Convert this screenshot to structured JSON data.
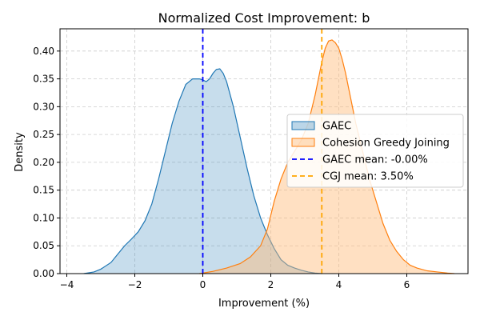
{
  "chart_data": {
    "type": "area",
    "title": "Normalized Cost Improvement: b",
    "xlabel": "Improvement (%)",
    "ylabel": "Density",
    "xlim": [
      -4.2,
      7.8
    ],
    "ylim": [
      0,
      0.44
    ],
    "xticks": [
      -4,
      -2,
      0,
      2,
      4,
      6
    ],
    "xtick_labels": [
      "−4",
      "−2",
      "0",
      "2",
      "4",
      "6"
    ],
    "yticks": [
      0,
      0.05,
      0.1,
      0.15,
      0.2,
      0.25,
      0.3,
      0.35,
      0.4
    ],
    "ytick_labels": [
      "0.00",
      "0.05",
      "0.10",
      "0.15",
      "0.20",
      "0.25",
      "0.30",
      "0.35",
      "0.40"
    ],
    "grid": true,
    "legend_position": "center-right",
    "series": [
      {
        "name": "GAEC",
        "kind": "density",
        "color": "#1f77b4",
        "fill": "#1f77b4",
        "x": [
          -3.5,
          -3.2,
          -3.0,
          -2.7,
          -2.5,
          -2.3,
          -2.1,
          -1.9,
          -1.7,
          -1.5,
          -1.3,
          -1.1,
          -0.9,
          -0.7,
          -0.5,
          -0.3,
          -0.1,
          0.0,
          0.1,
          0.2,
          0.3,
          0.4,
          0.5,
          0.6,
          0.7,
          0.9,
          1.1,
          1.3,
          1.5,
          1.7,
          1.9,
          2.1,
          2.3,
          2.5,
          2.7,
          2.9,
          3.1,
          3.3,
          3.5
        ],
        "y": [
          0.0,
          0.003,
          0.008,
          0.02,
          0.035,
          0.05,
          0.062,
          0.075,
          0.095,
          0.125,
          0.17,
          0.22,
          0.27,
          0.31,
          0.34,
          0.35,
          0.35,
          0.348,
          0.345,
          0.35,
          0.36,
          0.367,
          0.368,
          0.36,
          0.345,
          0.3,
          0.245,
          0.19,
          0.14,
          0.1,
          0.07,
          0.045,
          0.025,
          0.015,
          0.01,
          0.006,
          0.003,
          0.001,
          0.0
        ]
      },
      {
        "name": "Cohesion Greedy Joining",
        "kind": "density",
        "color": "#ff7f0e",
        "fill": "#ffbb78",
        "x": [
          -0.1,
          0.3,
          0.7,
          1.1,
          1.4,
          1.7,
          1.9,
          2.1,
          2.3,
          2.5,
          2.7,
          2.9,
          3.1,
          3.3,
          3.5,
          3.6,
          3.7,
          3.8,
          3.9,
          4.0,
          4.1,
          4.2,
          4.3,
          4.5,
          4.7,
          4.9,
          5.1,
          5.3,
          5.5,
          5.7,
          5.9,
          6.1,
          6.3,
          6.6,
          6.9,
          7.2,
          7.4
        ],
        "y": [
          0.0,
          0.004,
          0.01,
          0.018,
          0.03,
          0.05,
          0.08,
          0.13,
          0.17,
          0.2,
          0.22,
          0.24,
          0.27,
          0.32,
          0.38,
          0.405,
          0.418,
          0.42,
          0.415,
          0.405,
          0.385,
          0.36,
          0.33,
          0.27,
          0.22,
          0.17,
          0.13,
          0.09,
          0.06,
          0.04,
          0.025,
          0.015,
          0.01,
          0.005,
          0.003,
          0.001,
          0.0
        ]
      }
    ],
    "vlines": [
      {
        "name": "GAEC mean: -0.00%",
        "x": 0.0,
        "color": "#0000ff",
        "style": "dashed"
      },
      {
        "name": "CGJ mean: 3.50%",
        "x": 3.5,
        "color": "#ffa500",
        "style": "dashed"
      }
    ]
  }
}
